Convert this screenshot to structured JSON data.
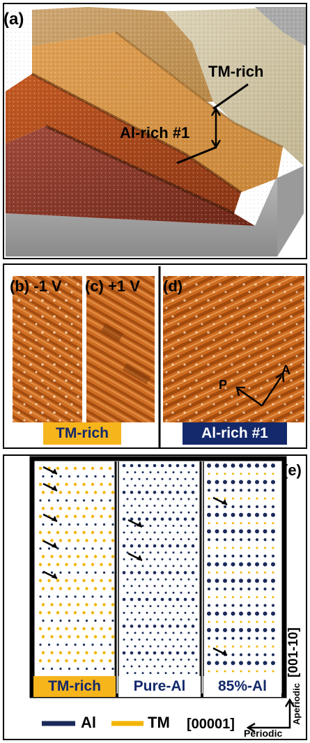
{
  "panel_a": {
    "label": "(a)",
    "annotations": {
      "tm_rich": "TM-rich",
      "al_rich": "Al-rich #1"
    }
  },
  "panel_bcd": {
    "label_b": "(b) -1 V",
    "label_c": "(c) +1 V",
    "label_d": "(d)",
    "arrow_p": "P",
    "arrow_a": "A",
    "tag_tm": "TM-rich",
    "tag_al": "Al-rich #1"
  },
  "panel_e": {
    "label": "(e)",
    "columns": [
      "TM-rich",
      "Pure-Al",
      "85%-Al"
    ],
    "legend": [
      {
        "name": "Al",
        "color": "#1a2a5a"
      },
      {
        "name": "TM",
        "color": "#f2b400"
      }
    ],
    "axis_vertical": "[001-10]",
    "axis_vertical_sub": "Aperiodic",
    "axis_horizontal": "[00001]",
    "axis_horizontal_sub": "Periodic"
  },
  "colors": {
    "al": "#1a2a5a",
    "tm": "#f2b400",
    "stm_orange": "#c8661e",
    "al_tag_bg": "#13296b",
    "tm_tag_bg": "#f7b51c"
  }
}
